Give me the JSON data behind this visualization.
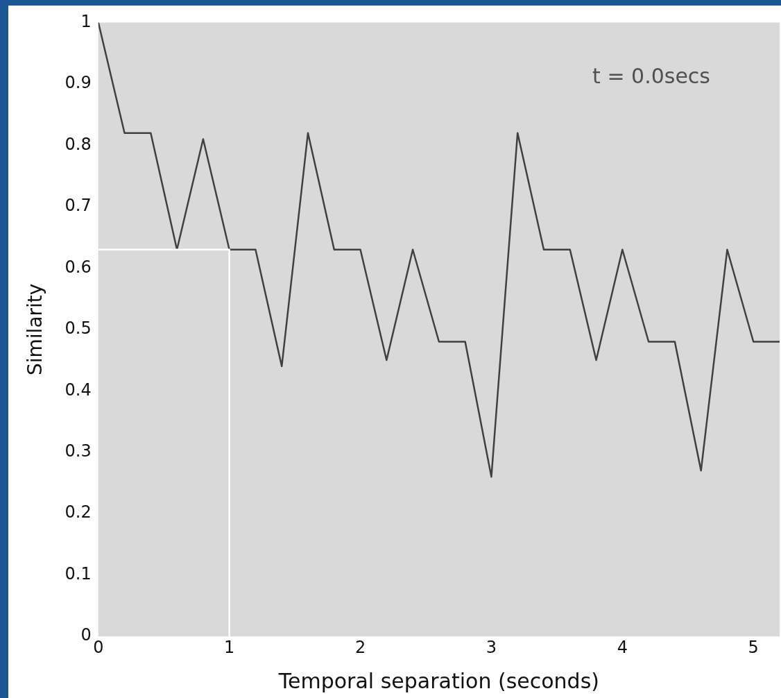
{
  "chart_data": {
    "type": "line",
    "xlabel": "Temporal separation (seconds)",
    "ylabel": "Similarity",
    "annotations": [
      "t = 0.0secs"
    ],
    "xlim": [
      0,
      5.2
    ],
    "xticks": [
      0,
      1,
      2,
      3,
      4,
      5
    ],
    "ylim": [
      0,
      1
    ],
    "yticks": [
      0,
      0.1,
      0.2,
      0.3,
      0.4,
      0.5,
      0.6,
      0.7,
      0.8,
      0.9,
      1
    ],
    "grid": false,
    "legend": false,
    "marker": "none",
    "line_style": "solid",
    "series": [
      {
        "color": "#ffffff",
        "x": [
          0,
          1,
          1
        ],
        "values": [
          0.63,
          0.63,
          0
        ]
      },
      {
        "color": "#404040",
        "x": [
          0,
          0.2,
          0.4,
          0.6,
          0.8,
          1,
          1.2,
          1.4,
          1.6,
          1.8,
          2,
          2.2,
          2.4,
          2.6,
          2.8,
          3,
          3.2,
          3.4,
          3.6,
          3.8,
          4,
          4.2,
          4.4,
          4.6,
          4.8,
          5,
          5.2
        ],
        "values": [
          1,
          0.82,
          0.82,
          0.63,
          0.81,
          0.63,
          0.63,
          0.44,
          0.82,
          0.63,
          0.63,
          0.45,
          0.63,
          0.48,
          0.48,
          0.26,
          0.82,
          0.63,
          0.63,
          0.45,
          0.63,
          0.48,
          0.48,
          0.27,
          0.63,
          0.48,
          0.48
        ]
      }
    ]
  }
}
